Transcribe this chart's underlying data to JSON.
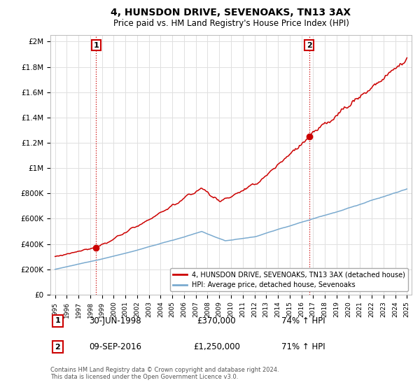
{
  "title": "4, HUNSDON DRIVE, SEVENOAKS, TN13 3AX",
  "subtitle": "Price paid vs. HM Land Registry's House Price Index (HPI)",
  "ylabel_values": [
    "£0",
    "£200K",
    "£400K",
    "£600K",
    "£800K",
    "£1M",
    "£1.2M",
    "£1.4M",
    "£1.6M",
    "£1.8M",
    "£2M"
  ],
  "y_ticks": [
    0,
    200000,
    400000,
    600000,
    800000,
    1000000,
    1200000,
    1400000,
    1600000,
    1800000,
    2000000
  ],
  "ylim": [
    0,
    2050000
  ],
  "x_start_year": 1995,
  "x_end_year": 2025,
  "red_color": "#cc0000",
  "blue_color": "#7aaacf",
  "legend_label_red": "4, HUNSDON DRIVE, SEVENOAKS, TN13 3AX (detached house)",
  "legend_label_blue": "HPI: Average price, detached house, Sevenoaks",
  "sale1_date": "30-JUN-1998",
  "sale1_price": 370000,
  "sale1_hpi": "74% ↑ HPI",
  "sale1_year": 1998.5,
  "sale2_date": "09-SEP-2016",
  "sale2_price": 1250000,
  "sale2_year": 2016.67,
  "sale2_hpi": "71% ↑ HPI",
  "footnote": "Contains HM Land Registry data © Crown copyright and database right 2024.\nThis data is licensed under the Open Government Licence v3.0.",
  "background_color": "#ffffff",
  "grid_color": "#e0e0e0"
}
